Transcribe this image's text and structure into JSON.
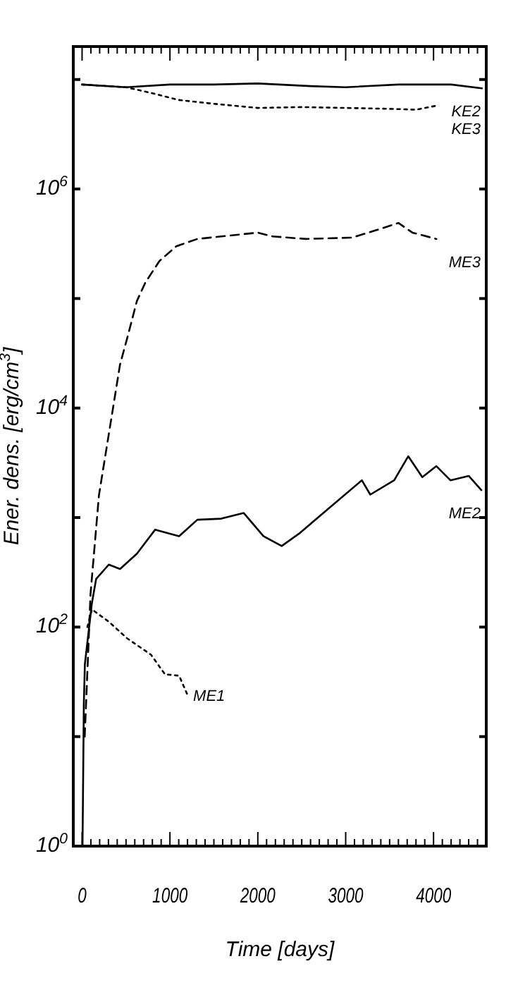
{
  "chart_data": {
    "type": "line",
    "xlabel": "Time [days]",
    "ylabel": "Ener. dens. [erg/cm$^{3}$]",
    "log": "y",
    "grid": false,
    "marker": "none",
    "xlim": [
      -100,
      4600
    ],
    "ylim": [
      1,
      20000000
    ],
    "xticks": [
      0,
      {
        "value": 100,
        "label": null
      },
      {
        "value": 200,
        "label": null
      },
      {
        "value": 300,
        "label": null
      },
      {
        "value": 400,
        "label": null
      },
      {
        "value": 500,
        "label": null
      },
      {
        "value": 600,
        "label": null
      },
      {
        "value": 700,
        "label": null
      },
      {
        "value": 800,
        "label": null
      },
      {
        "value": 900,
        "label": null
      },
      1000,
      {
        "value": 1100,
        "label": null
      },
      {
        "value": 1200,
        "label": null
      },
      {
        "value": 1300,
        "label": null
      },
      {
        "value": 1400,
        "label": null
      },
      {
        "value": 1500,
        "label": null
      },
      {
        "value": 1600,
        "label": null
      },
      {
        "value": 1700,
        "label": null
      },
      {
        "value": 1800,
        "label": null
      },
      {
        "value": 1900,
        "label": null
      },
      2000,
      {
        "value": 2100,
        "label": null
      },
      {
        "value": 2200,
        "label": null
      },
      {
        "value": 2300,
        "label": null
      },
      {
        "value": 2400,
        "label": null
      },
      {
        "value": 2500,
        "label": null
      },
      {
        "value": 2600,
        "label": null
      },
      {
        "value": 2700,
        "label": null
      },
      {
        "value": 2800,
        "label": null
      },
      {
        "value": 2900,
        "label": null
      },
      3000,
      {
        "value": 3100,
        "label": null
      },
      {
        "value": 3200,
        "label": null
      },
      {
        "value": 3300,
        "label": null
      },
      {
        "value": 3400,
        "label": null
      },
      {
        "value": 3500,
        "label": null
      },
      {
        "value": 3600,
        "label": null
      },
      {
        "value": 3700,
        "label": null
      },
      {
        "value": 3800,
        "label": null
      },
      {
        "value": 3900,
        "label": null
      },
      4000,
      {
        "value": 4100,
        "label": null
      },
      {
        "value": 4200,
        "label": null
      },
      {
        "value": 4300,
        "label": null
      },
      {
        "value": 4400,
        "label": null
      },
      {
        "value": 4500,
        "label": null
      }
    ],
    "yticks": [
      {
        "value": 1,
        "label": "10$^{0}$"
      },
      {
        "value": 10,
        "label": null
      },
      {
        "value": 100,
        "label": "10$^{2}$"
      },
      {
        "value": 1000,
        "label": null
      },
      {
        "value": 10000,
        "label": "10$^{4}$"
      },
      {
        "value": 100000,
        "label": null
      },
      {
        "value": 1000000,
        "label": "10$^{6}$"
      },
      {
        "value": 10000000,
        "label": null
      }
    ],
    "series": [
      {
        "name": "KE2",
        "color": "#000000",
        "line_style": "solid",
        "x": [
          0,
          500,
          1000,
          1500,
          2000,
          2600,
          3000,
          3600,
          4200,
          4550
        ],
        "values": [
          9000000,
          8500000,
          9000000,
          9000000,
          9200000,
          8700000,
          8500000,
          9000000,
          9000000,
          8300000
        ]
      },
      {
        "name": "KE3",
        "color": "#000000",
        "line_style": "dotted",
        "x": [
          0,
          500,
          800,
          1100,
          1500,
          2000,
          2500,
          3000,
          3500,
          3800,
          4050
        ],
        "values": [
          9000000,
          8500000,
          7500000,
          6500000,
          6000000,
          5500000,
          5600000,
          5500000,
          5400000,
          5300000,
          5800000
        ]
      },
      {
        "name": "ME3",
        "color": "#000000",
        "line_style": "dashed",
        "x": [
          30,
          64,
          96,
          192,
          352,
          432,
          512,
          624,
          720,
          880,
          1072,
          1312,
          2000,
          2160,
          2544,
          3072,
          3344,
          3600,
          3760,
          4032
        ],
        "values": [
          10,
          46,
          200,
          1600,
          10000,
          25000,
          43000,
          95000,
          140000,
          220000,
          300000,
          350000,
          400000,
          370000,
          350000,
          360000,
          420000,
          490000,
          400000,
          350000
        ]
      },
      {
        "name": "ME2",
        "color": "#000000",
        "line_style": "solid",
        "x": [
          5,
          20,
          32,
          112,
          160,
          304,
          432,
          624,
          832,
          1104,
          1312,
          1584,
          1840,
          2064,
          2272,
          2480,
          2800,
          3184,
          3280,
          3552,
          3712,
          3872,
          4032,
          4192,
          4400,
          4544
        ],
        "values": [
          1,
          20,
          46,
          166,
          275,
          372,
          339,
          468,
          776,
          676,
          955,
          977,
          1100,
          676,
          550,
          724,
          1200,
          2190,
          1620,
          2190,
          3630,
          2340,
          2950,
          2190,
          2400,
          1780
        ]
      },
      {
        "name": "ME1",
        "color": "#000000",
        "line_style": "dotted",
        "x": [
          60,
          112,
          304,
          512,
          784,
          944,
          1104,
          1200
        ],
        "values": [
          100,
          145,
          112,
          79,
          56,
          37,
          36,
          24
        ]
      }
    ]
  }
}
